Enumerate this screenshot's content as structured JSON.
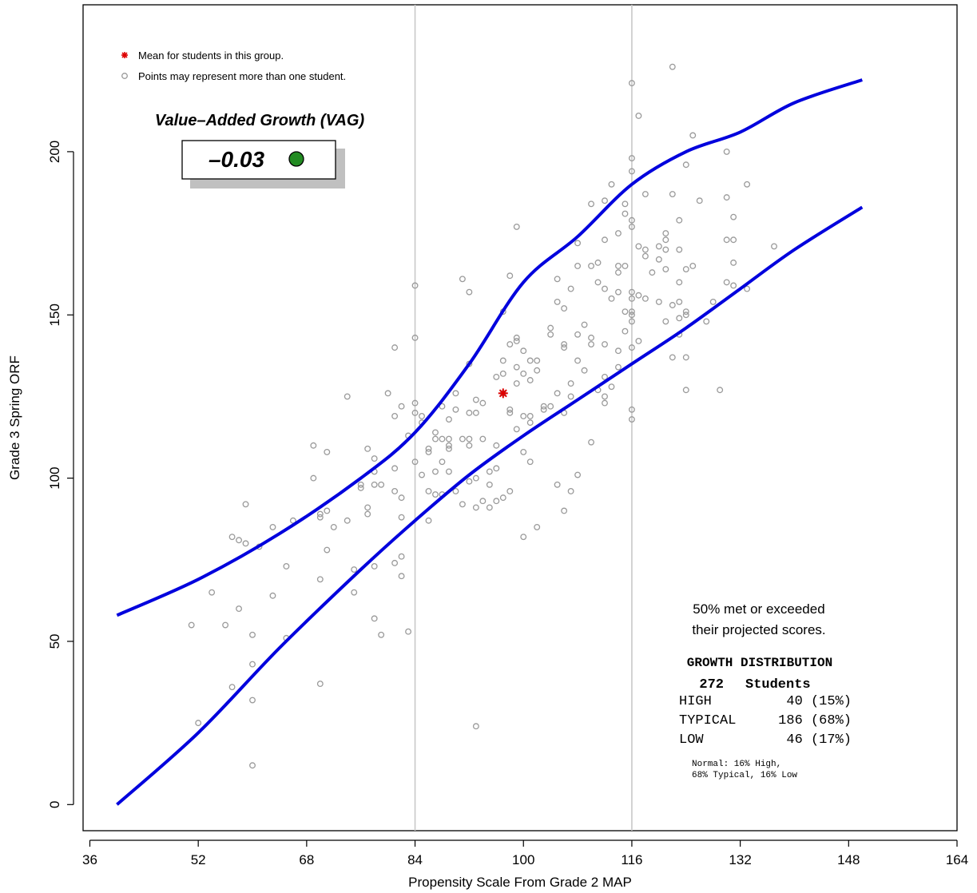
{
  "chart_data": {
    "type": "scatter",
    "xlabel": "Propensity Scale From Grade 2 MAP",
    "ylabel": "Grade 3 Spring ORF",
    "xlim": [
      35,
      164
    ],
    "ylim": [
      -8,
      245
    ],
    "x_ticks": [
      "36",
      "52",
      "68",
      "84",
      "100",
      "116",
      "132",
      "148",
      "164"
    ],
    "y_ticks": [
      "0",
      "50",
      "100",
      "150",
      "200"
    ],
    "vlines": [
      84,
      116
    ],
    "legend": {
      "mean_label": "Mean for students in this group.",
      "points_label": "Points may represent more than one student."
    },
    "vag": {
      "title": "Value–Added Growth (VAG)",
      "value": "–0.03",
      "color": "#228B22"
    },
    "mean_point": {
      "x": 97,
      "y": 126,
      "color": "#dd0000"
    },
    "colors": {
      "band": "#0000dd",
      "points": "#9a9a9a",
      "vlines": "#c8c8c8"
    },
    "upper_band": [
      [
        40,
        58
      ],
      [
        52,
        69
      ],
      [
        64,
        83
      ],
      [
        76,
        100
      ],
      [
        84,
        114
      ],
      [
        92,
        135
      ],
      [
        100,
        160
      ],
      [
        108,
        174
      ],
      [
        116,
        190
      ],
      [
        124,
        200
      ],
      [
        132,
        206
      ],
      [
        140,
        215
      ],
      [
        150,
        222
      ]
    ],
    "lower_band": [
      [
        40,
        0
      ],
      [
        52,
        22
      ],
      [
        64,
        48
      ],
      [
        76,
        72
      ],
      [
        84,
        87
      ],
      [
        92,
        101
      ],
      [
        100,
        113
      ],
      [
        108,
        124
      ],
      [
        116,
        135
      ],
      [
        124,
        146
      ],
      [
        132,
        158
      ],
      [
        140,
        170
      ],
      [
        150,
        183
      ]
    ],
    "points": [
      [
        51,
        55
      ],
      [
        52,
        25
      ],
      [
        54,
        65
      ],
      [
        56,
        55
      ],
      [
        57,
        36
      ],
      [
        57,
        82
      ],
      [
        58,
        60
      ],
      [
        58,
        81
      ],
      [
        59,
        80
      ],
      [
        59,
        92
      ],
      [
        60,
        12
      ],
      [
        60,
        32
      ],
      [
        60,
        43
      ],
      [
        60,
        52
      ],
      [
        61,
        79
      ],
      [
        63,
        64
      ],
      [
        63,
        85
      ],
      [
        65,
        51
      ],
      [
        65,
        73
      ],
      [
        66,
        87
      ],
      [
        69,
        110
      ],
      [
        69,
        100
      ],
      [
        70,
        88
      ],
      [
        70,
        89
      ],
      [
        70,
        69
      ],
      [
        70,
        37
      ],
      [
        71,
        108
      ],
      [
        71,
        90
      ],
      [
        71,
        78
      ],
      [
        72,
        85
      ],
      [
        74,
        87
      ],
      [
        74,
        125
      ],
      [
        75,
        72
      ],
      [
        75,
        65
      ],
      [
        76,
        97
      ],
      [
        76,
        98
      ],
      [
        77,
        91
      ],
      [
        77,
        89
      ],
      [
        77,
        109
      ],
      [
        78,
        106
      ],
      [
        78,
        102
      ],
      [
        78,
        98
      ],
      [
        78,
        73
      ],
      [
        78,
        57
      ],
      [
        79,
        98
      ],
      [
        79,
        52
      ],
      [
        80,
        126
      ],
      [
        81,
        96
      ],
      [
        81,
        119
      ],
      [
        81,
        140
      ],
      [
        81,
        103
      ],
      [
        81,
        74
      ],
      [
        82,
        94
      ],
      [
        82,
        88
      ],
      [
        82,
        70
      ],
      [
        82,
        76
      ],
      [
        82,
        122
      ],
      [
        83,
        53
      ],
      [
        83,
        113
      ],
      [
        84,
        105
      ],
      [
        84,
        120
      ],
      [
        84,
        143
      ],
      [
        84,
        123
      ],
      [
        84,
        159
      ],
      [
        85,
        101
      ],
      [
        85,
        119
      ],
      [
        85,
        117
      ],
      [
        86,
        87
      ],
      [
        86,
        96
      ],
      [
        86,
        108
      ],
      [
        86,
        109
      ],
      [
        87,
        102
      ],
      [
        87,
        112
      ],
      [
        87,
        95
      ],
      [
        87,
        114
      ],
      [
        88,
        122
      ],
      [
        88,
        105
      ],
      [
        88,
        112
      ],
      [
        88,
        95
      ],
      [
        89,
        110
      ],
      [
        89,
        102
      ],
      [
        89,
        109
      ],
      [
        89,
        112
      ],
      [
        89,
        118
      ],
      [
        90,
        126
      ],
      [
        90,
        121
      ],
      [
        90,
        96
      ],
      [
        91,
        92
      ],
      [
        91,
        161
      ],
      [
        91,
        112
      ],
      [
        92,
        112
      ],
      [
        92,
        120
      ],
      [
        92,
        110
      ],
      [
        92,
        99
      ],
      [
        92,
        157
      ],
      [
        92,
        135
      ],
      [
        93,
        124
      ],
      [
        93,
        120
      ],
      [
        93,
        100
      ],
      [
        93,
        24
      ],
      [
        93,
        91
      ],
      [
        94,
        123
      ],
      [
        94,
        112
      ],
      [
        94,
        93
      ],
      [
        95,
        91
      ],
      [
        95,
        98
      ],
      [
        95,
        102
      ],
      [
        96,
        110
      ],
      [
        96,
        131
      ],
      [
        96,
        103
      ],
      [
        96,
        93
      ],
      [
        97,
        94
      ],
      [
        97,
        136
      ],
      [
        97,
        126
      ],
      [
        97,
        132
      ],
      [
        97,
        151
      ],
      [
        98,
        162
      ],
      [
        98,
        141
      ],
      [
        98,
        121
      ],
      [
        98,
        120
      ],
      [
        98,
        96
      ],
      [
        99,
        177
      ],
      [
        99,
        143
      ],
      [
        99,
        134
      ],
      [
        99,
        142
      ],
      [
        99,
        129
      ],
      [
        99,
        115
      ],
      [
        100,
        108
      ],
      [
        100,
        139
      ],
      [
        100,
        132
      ],
      [
        100,
        119
      ],
      [
        100,
        82
      ],
      [
        101,
        119
      ],
      [
        101,
        117
      ],
      [
        101,
        130
      ],
      [
        101,
        105
      ],
      [
        101,
        136
      ],
      [
        102,
        133
      ],
      [
        102,
        136
      ],
      [
        102,
        85
      ],
      [
        103,
        122
      ],
      [
        103,
        121
      ],
      [
        104,
        122
      ],
      [
        104,
        146
      ],
      [
        104,
        144
      ],
      [
        105,
        161
      ],
      [
        105,
        154
      ],
      [
        105,
        98
      ],
      [
        105,
        126
      ],
      [
        106,
        152
      ],
      [
        106,
        141
      ],
      [
        106,
        140
      ],
      [
        106,
        120
      ],
      [
        106,
        90
      ],
      [
        107,
        129
      ],
      [
        107,
        125
      ],
      [
        107,
        96
      ],
      [
        107,
        158
      ],
      [
        108,
        165
      ],
      [
        108,
        101
      ],
      [
        108,
        172
      ],
      [
        108,
        144
      ],
      [
        108,
        136
      ],
      [
        109,
        133
      ],
      [
        109,
        147
      ],
      [
        110,
        184
      ],
      [
        110,
        165
      ],
      [
        110,
        111
      ],
      [
        110,
        143
      ],
      [
        110,
        141
      ],
      [
        111,
        127
      ],
      [
        111,
        160
      ],
      [
        111,
        166
      ],
      [
        112,
        185
      ],
      [
        112,
        158
      ],
      [
        112,
        173
      ],
      [
        112,
        141
      ],
      [
        112,
        125
      ],
      [
        112,
        131
      ],
      [
        112,
        123
      ],
      [
        113,
        190
      ],
      [
        113,
        155
      ],
      [
        113,
        128
      ],
      [
        114,
        175
      ],
      [
        114,
        165
      ],
      [
        114,
        163
      ],
      [
        114,
        157
      ],
      [
        114,
        139
      ],
      [
        114,
        134
      ],
      [
        115,
        184
      ],
      [
        115,
        181
      ],
      [
        115,
        165
      ],
      [
        115,
        151
      ],
      [
        115,
        145
      ],
      [
        116,
        221
      ],
      [
        116,
        198
      ],
      [
        116,
        194
      ],
      [
        116,
        179
      ],
      [
        116,
        177
      ],
      [
        116,
        157
      ],
      [
        116,
        155
      ],
      [
        116,
        151
      ],
      [
        116,
        150
      ],
      [
        116,
        148
      ],
      [
        116,
        140
      ],
      [
        116,
        121
      ],
      [
        116,
        118
      ],
      [
        117,
        211
      ],
      [
        117,
        171
      ],
      [
        117,
        156
      ],
      [
        117,
        142
      ],
      [
        118,
        187
      ],
      [
        118,
        170
      ],
      [
        118,
        168
      ],
      [
        118,
        155
      ],
      [
        119,
        163
      ],
      [
        120,
        171
      ],
      [
        120,
        167
      ],
      [
        120,
        154
      ],
      [
        121,
        173
      ],
      [
        121,
        170
      ],
      [
        121,
        164
      ],
      [
        121,
        148
      ],
      [
        121,
        175
      ],
      [
        122,
        226
      ],
      [
        122,
        187
      ],
      [
        122,
        153
      ],
      [
        122,
        137
      ],
      [
        123,
        179
      ],
      [
        123,
        170
      ],
      [
        123,
        160
      ],
      [
        123,
        154
      ],
      [
        123,
        149
      ],
      [
        123,
        144
      ],
      [
        124,
        196
      ],
      [
        124,
        164
      ],
      [
        124,
        151
      ],
      [
        124,
        150
      ],
      [
        124,
        127
      ],
      [
        124,
        137
      ],
      [
        125,
        205
      ],
      [
        125,
        165
      ],
      [
        126,
        185
      ],
      [
        127,
        148
      ],
      [
        128,
        154
      ],
      [
        129,
        127
      ],
      [
        130,
        200
      ],
      [
        130,
        186
      ],
      [
        130,
        173
      ],
      [
        130,
        160
      ],
      [
        131,
        180
      ],
      [
        131,
        173
      ],
      [
        131,
        166
      ],
      [
        131,
        159
      ],
      [
        133,
        190
      ],
      [
        133,
        158
      ],
      [
        137,
        171
      ]
    ],
    "annotation": [
      "50% met or exceeded",
      "their projected scores."
    ],
    "growth": {
      "title": "GROWTH DISTRIBUTION",
      "count": "272",
      "students_label": "Students",
      "rows": [
        {
          "label": "HIGH",
          "value": "40 (15%)"
        },
        {
          "label": "TYPICAL",
          "value": "186 (68%)"
        },
        {
          "label": "LOW",
          "value": "46 (17%)"
        }
      ],
      "normal_lines": [
        "Normal: 16% High,",
        "68% Typical, 16% Low"
      ]
    }
  }
}
